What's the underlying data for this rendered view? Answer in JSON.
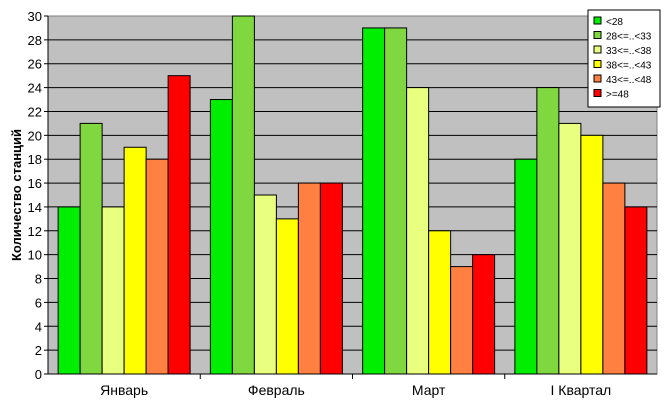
{
  "chart_data": {
    "type": "bar",
    "title": "",
    "xlabel": "",
    "ylabel": "Количество станций",
    "ylim": [
      0,
      30
    ],
    "ytick_step": 2,
    "grid": true,
    "legend_position": "top-right",
    "plot_background": "#c0c0c0",
    "categories": [
      "Январь",
      "Февраль",
      "Март",
      "I Квартал"
    ],
    "series": [
      {
        "name": "<28",
        "color": "#00ee00",
        "values": [
          14,
          23,
          29,
          18
        ]
      },
      {
        "name": "28<=..<33",
        "color": "#80d840",
        "values": [
          21,
          30,
          29,
          24
        ]
      },
      {
        "name": "33<=..<38",
        "color": "#e8ff80",
        "values": [
          14,
          15,
          24,
          21
        ]
      },
      {
        "name": "38<=..<43",
        "color": "#ffff00",
        "values": [
          19,
          13,
          12,
          20
        ]
      },
      {
        "name": "43<=..<48",
        "color": "#ff8040",
        "values": [
          18,
          16,
          9,
          16
        ]
      },
      {
        "name": ">=48",
        "color": "#ff0000",
        "values": [
          25,
          16,
          10,
          14
        ]
      }
    ]
  }
}
